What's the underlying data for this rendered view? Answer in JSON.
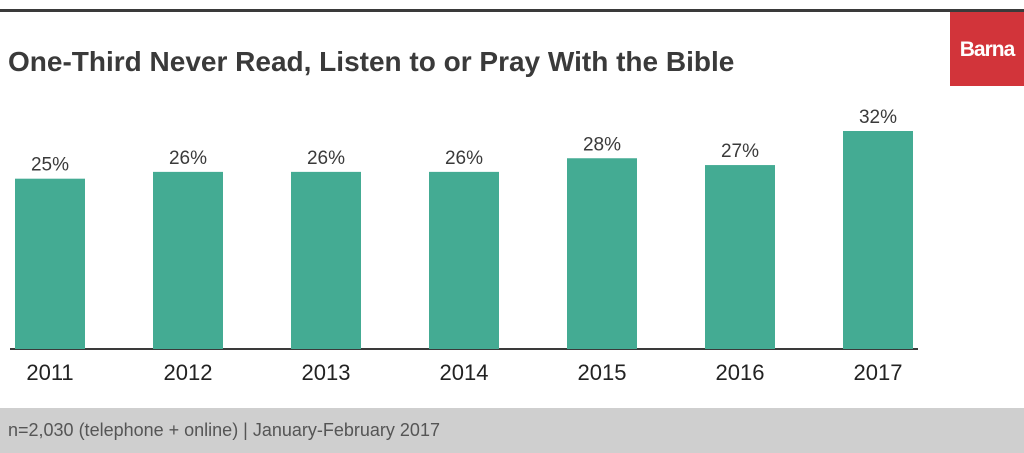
{
  "title": "One-Third Never Read, Listen to or Pray With the Bible",
  "brand": "Barna",
  "footer_note": "n=2,030 (telephone + online) | January-February 2017",
  "colors": {
    "bar": "#44ab93",
    "brand": "#d2343a",
    "text": "#3a3a3a",
    "footer_bg": "#cfcfcf"
  },
  "chart_data": {
    "type": "bar",
    "title": "One-Third Never Read, Listen to or Pray With the Bible",
    "categories": [
      "2011",
      "2012",
      "2013",
      "2014",
      "2015",
      "2016",
      "2017"
    ],
    "values": [
      25,
      26,
      26,
      26,
      28,
      27,
      32
    ],
    "data_labels": [
      "25%",
      "26%",
      "26%",
      "26%",
      "28%",
      "27%",
      "32%"
    ],
    "xlabel": "",
    "ylabel": "",
    "ylim": [
      0,
      32
    ],
    "grid": false,
    "legend": "none"
  }
}
